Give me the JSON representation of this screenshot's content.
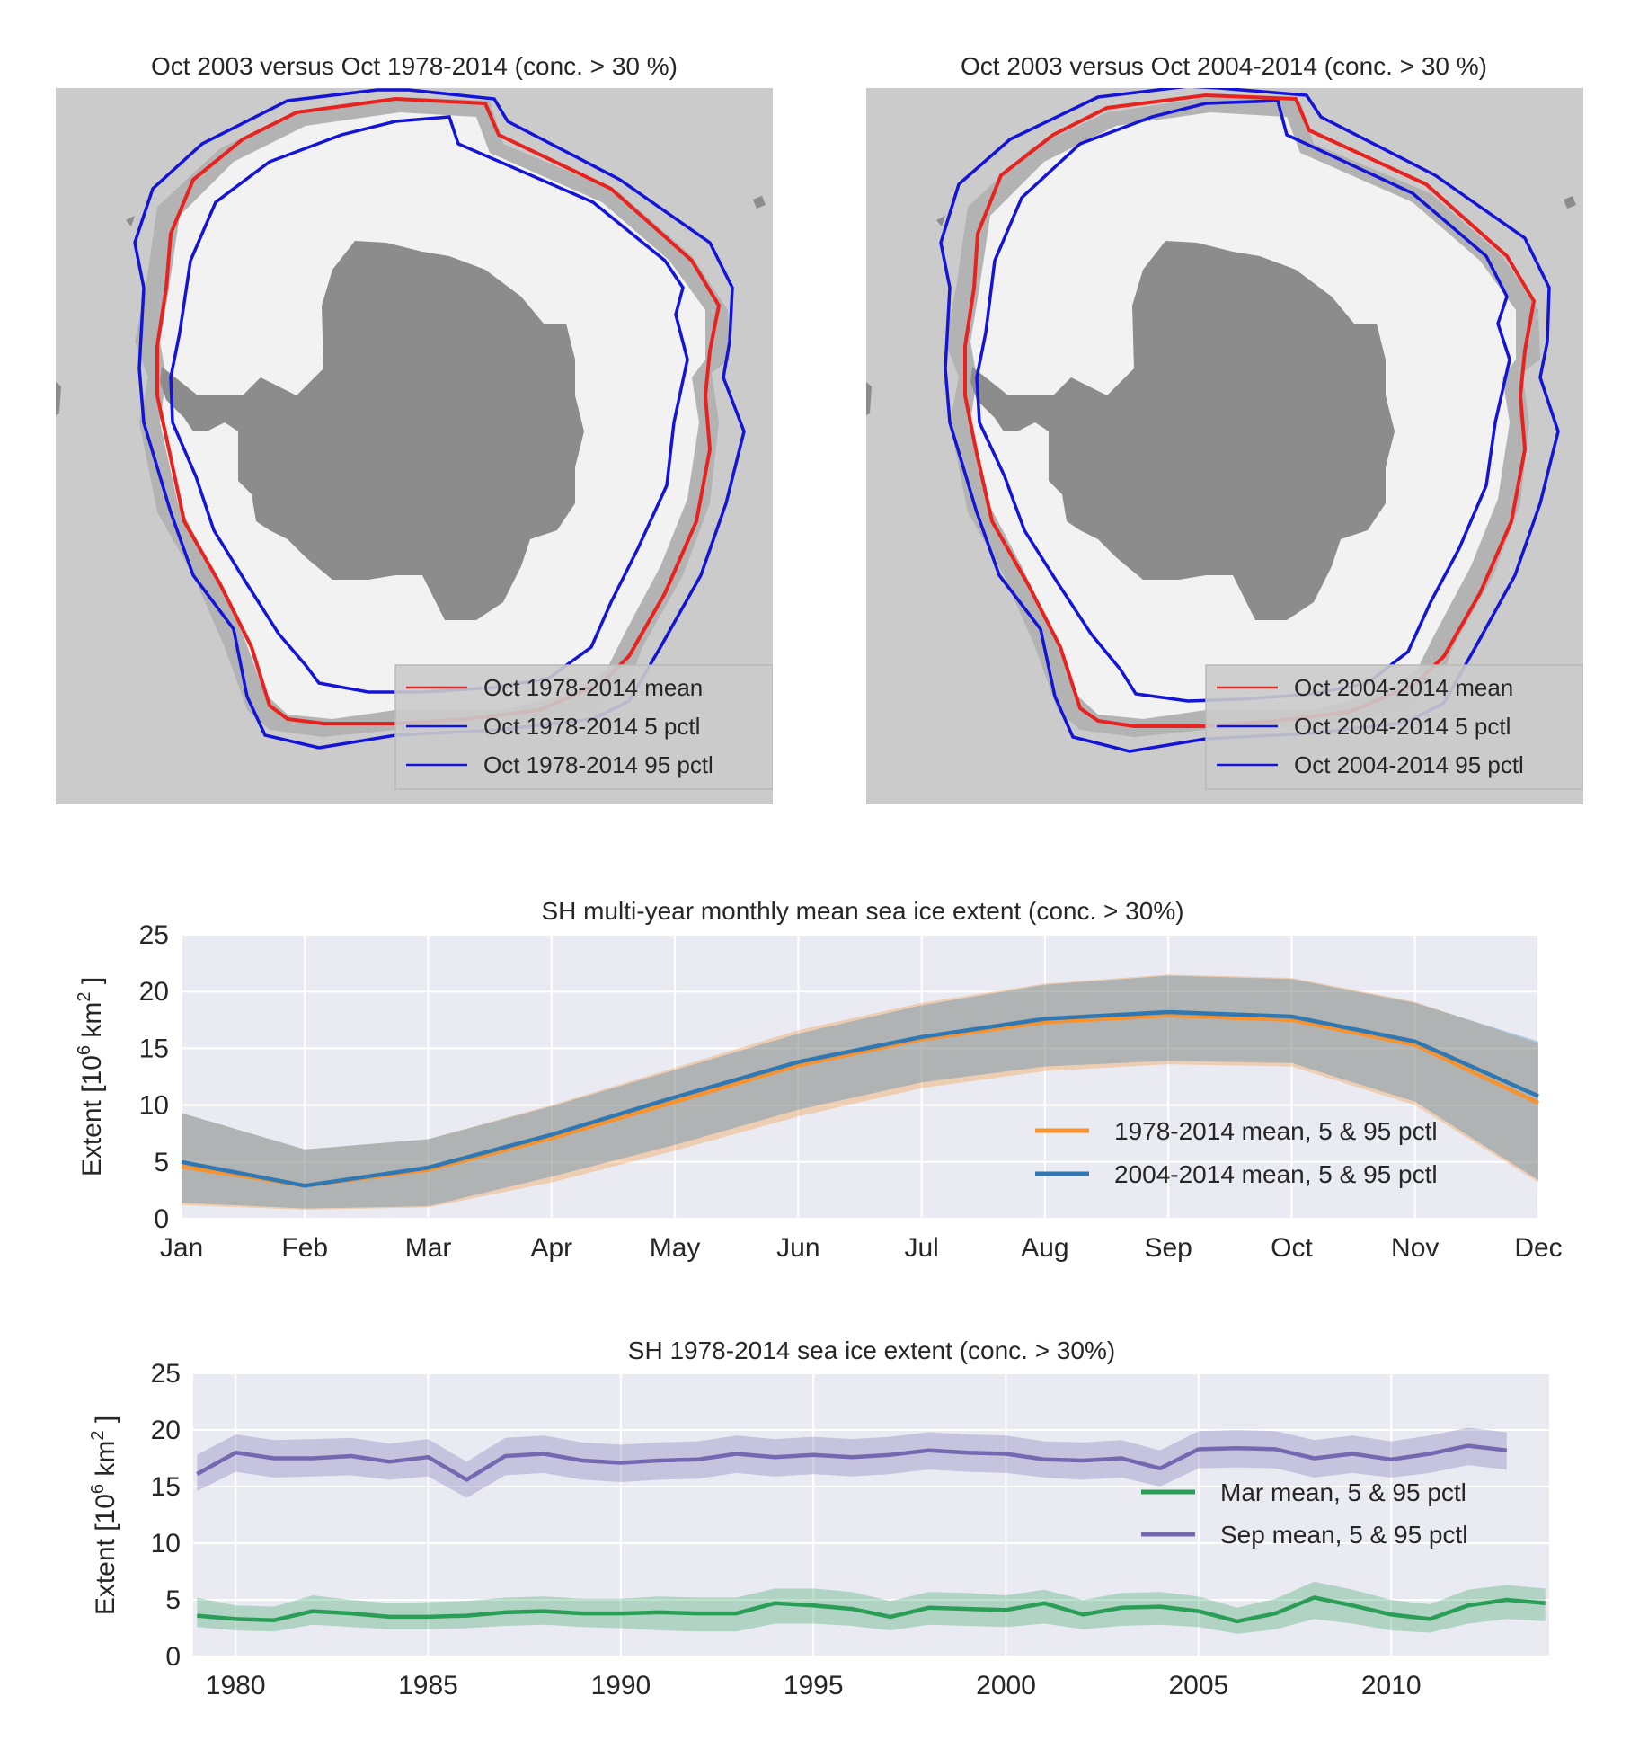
{
  "colors": {
    "map_background": "#cbcbcb",
    "ice_area": "#f2f2f2",
    "ice_margin": "#b3b3b3",
    "land": "#8c8c8c",
    "mean_line": "#e8231f",
    "pctl_line": "#1414d8",
    "plot_background": "#eaeaf2",
    "grid": "#ffffff",
    "orange": "#f7932f",
    "blue": "#3078b4",
    "green": "#2a9e57",
    "purple": "#7469b0"
  },
  "maps": [
    {
      "title": "Oct 2003 versus Oct 1978-2014 (conc. > 30 %)",
      "legend": [
        "Oct 1978-2014 mean",
        "Oct 1978-2014 5 pctl",
        "Oct 1978-2014 95 pctl"
      ]
    },
    {
      "title": "Oct 2003 versus Oct 2004-2014 (conc. > 30 %)",
      "legend": [
        "Oct 2004-2014 mean",
        "Oct 2004-2014 5 pctl",
        "Oct 2004-2014 95 pctl"
      ]
    }
  ],
  "chart_data": [
    {
      "type": "line",
      "title": "SH multi-year monthly mean sea ice extent (conc. > 30%)",
      "ylabel": "Extent [10^6 km^2]",
      "ylim": [
        0,
        25
      ],
      "yticks": [
        0,
        5,
        10,
        15,
        20,
        25
      ],
      "categories": [
        "Jan",
        "Feb",
        "Mar",
        "Apr",
        "May",
        "Jun",
        "Jul",
        "Aug",
        "Sep",
        "Oct",
        "Nov",
        "Dec"
      ],
      "legend_position": "lower-right",
      "series": [
        {
          "name": "1978-2014 mean, 5 & 95 pctl",
          "color": "orange",
          "mean": [
            4.6,
            2.9,
            4.3,
            7.1,
            10.3,
            13.5,
            15.8,
            17.3,
            17.9,
            17.5,
            15.3,
            10.2
          ],
          "p5": [
            1.2,
            0.8,
            1.0,
            3.2,
            6.0,
            9.0,
            11.5,
            13.0,
            13.6,
            13.4,
            10.0,
            3.2
          ],
          "p95": [
            9.3,
            6.1,
            7.0,
            10.0,
            13.3,
            16.6,
            19.0,
            20.7,
            21.5,
            21.2,
            19.1,
            15.4
          ]
        },
        {
          "name": "2004-2014 mean, 5 & 95 pctl",
          "color": "blue",
          "mean": [
            5.0,
            2.9,
            4.5,
            7.4,
            10.7,
            13.8,
            16.0,
            17.6,
            18.2,
            17.8,
            15.6,
            10.8
          ],
          "p5": [
            1.4,
            0.9,
            1.1,
            3.7,
            6.5,
            9.6,
            12.0,
            13.4,
            13.9,
            13.7,
            10.3,
            3.4
          ],
          "p95": [
            9.3,
            6.1,
            7.0,
            9.9,
            13.1,
            16.3,
            18.8,
            20.6,
            21.4,
            21.1,
            19.0,
            15.6
          ]
        }
      ]
    },
    {
      "type": "line",
      "title": "SH 1978-2014 sea ice extent (conc. > 30%)",
      "ylabel": "Extent [10^6 km^2]",
      "ylim": [
        0,
        25
      ],
      "xlim": [
        1978.9,
        2014.1
      ],
      "yticks": [
        0,
        5,
        10,
        15,
        20,
        25
      ],
      "xticks": [
        1980,
        1985,
        1990,
        1995,
        2000,
        2005,
        2010
      ],
      "legend_position": "center-right",
      "series": [
        {
          "name": "Mar mean, 5 & 95 pctl",
          "color": "green",
          "x": [
            1979,
            1980,
            1981,
            1982,
            1983,
            1984,
            1985,
            1986,
            1987,
            1988,
            1989,
            1990,
            1991,
            1992,
            1993,
            1994,
            1995,
            1996,
            1997,
            1998,
            1999,
            2000,
            2001,
            2002,
            2003,
            2004,
            2005,
            2006,
            2007,
            2008,
            2009,
            2010,
            2011,
            2012,
            2013,
            2014
          ],
          "mean": [
            3.6,
            3.3,
            3.2,
            4.0,
            3.8,
            3.5,
            3.5,
            3.6,
            3.9,
            4.0,
            3.8,
            3.8,
            3.9,
            3.8,
            3.8,
            4.7,
            4.5,
            4.2,
            3.5,
            4.3,
            4.2,
            4.1,
            4.7,
            3.7,
            4.3,
            4.4,
            4.0,
            3.1,
            3.8,
            5.2,
            4.5,
            3.7,
            3.3,
            4.5,
            5.0,
            4.7
          ],
          "p5": [
            2.6,
            2.3,
            2.2,
            2.8,
            2.6,
            2.4,
            2.4,
            2.5,
            2.7,
            2.8,
            2.6,
            2.5,
            2.3,
            2.2,
            2.2,
            2.9,
            2.9,
            2.7,
            2.3,
            2.8,
            2.7,
            2.6,
            2.9,
            2.4,
            2.7,
            2.8,
            2.6,
            2.0,
            2.4,
            3.3,
            2.9,
            2.3,
            2.1,
            2.9,
            3.3,
            3.1
          ],
          "p95": [
            5.2,
            4.5,
            4.4,
            5.4,
            5.0,
            4.7,
            4.8,
            4.9,
            5.2,
            5.3,
            5.1,
            5.1,
            5.3,
            5.2,
            5.2,
            6.0,
            6.0,
            5.7,
            4.9,
            5.7,
            5.6,
            5.4,
            5.9,
            5.0,
            5.6,
            5.7,
            5.3,
            4.3,
            5.1,
            6.6,
            5.9,
            5.0,
            4.6,
            5.9,
            6.3,
            6.0
          ]
        },
        {
          "name": "Sep mean, 5 & 95 pctl",
          "color": "purple",
          "x": [
            1979,
            1980,
            1981,
            1982,
            1983,
            1984,
            1985,
            1986,
            1987,
            1988,
            1989,
            1990,
            1991,
            1992,
            1993,
            1994,
            1995,
            1996,
            1997,
            1998,
            1999,
            2000,
            2001,
            2002,
            2003,
            2004,
            2005,
            2006,
            2007,
            2008,
            2009,
            2010,
            2011,
            2012,
            2013
          ],
          "mean": [
            16.1,
            18.0,
            17.5,
            17.5,
            17.7,
            17.2,
            17.6,
            15.6,
            17.7,
            17.9,
            17.3,
            17.1,
            17.3,
            17.4,
            17.9,
            17.6,
            17.8,
            17.6,
            17.8,
            18.2,
            18.0,
            17.9,
            17.4,
            17.3,
            17.5,
            16.6,
            18.3,
            18.4,
            18.3,
            17.5,
            17.9,
            17.4,
            17.9,
            18.6,
            18.2
          ],
          "p5": [
            14.6,
            16.3,
            15.8,
            15.9,
            16.0,
            15.6,
            15.9,
            14.0,
            16.0,
            16.2,
            15.6,
            15.4,
            15.6,
            15.7,
            16.2,
            15.9,
            16.1,
            15.9,
            16.1,
            16.5,
            16.3,
            16.2,
            15.8,
            15.6,
            15.8,
            15.0,
            16.6,
            16.7,
            16.6,
            15.8,
            16.2,
            15.8,
            16.2,
            16.9,
            16.5
          ],
          "p95": [
            17.8,
            19.6,
            19.1,
            19.2,
            19.3,
            18.8,
            19.2,
            17.2,
            19.3,
            19.5,
            18.9,
            18.7,
            18.9,
            19.0,
            19.5,
            19.2,
            19.4,
            19.2,
            19.4,
            19.8,
            19.6,
            19.5,
            19.0,
            18.9,
            19.1,
            18.2,
            19.9,
            20.0,
            19.9,
            19.1,
            19.5,
            19.0,
            19.5,
            20.2,
            19.8
          ]
        }
      ]
    }
  ]
}
